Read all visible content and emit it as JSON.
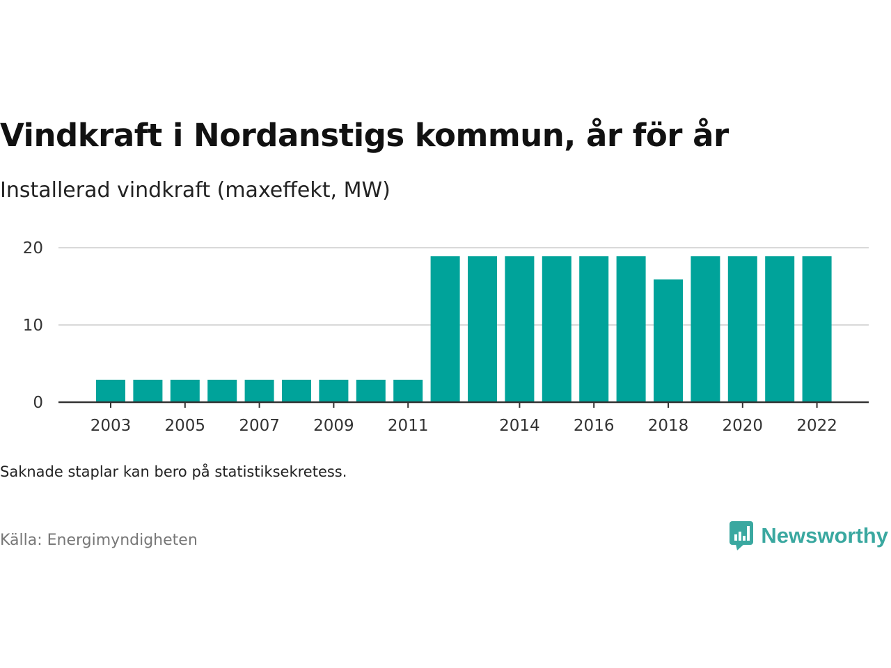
{
  "title": "Vindkraft i Nordanstigs kommun, år för år",
  "subtitle": "Installerad vindkraft (maxeffekt, MW)",
  "note": "Saknade staplar kan bero på statistiksekretess.",
  "source": "Källa: Energimyndigheten",
  "logo_text": "Newsworthy",
  "colors": {
    "bar": "#00a39a",
    "grid": "#d9d9d9",
    "axis": "#333333",
    "logo": "#3aa8a0"
  },
  "chart_data": {
    "type": "bar",
    "categories": [
      "2003",
      "2004",
      "2005",
      "2006",
      "2007",
      "2008",
      "2009",
      "2010",
      "2011",
      "2012",
      "2013",
      "2014",
      "2015",
      "2016",
      "2017",
      "2018",
      "2019",
      "2020",
      "2021",
      "2022"
    ],
    "values": [
      2.9,
      2.9,
      2.9,
      2.9,
      2.9,
      2.9,
      2.9,
      2.9,
      2.9,
      18.9,
      18.9,
      18.9,
      18.9,
      18.9,
      18.9,
      15.9,
      18.9,
      18.9,
      18.9,
      18.9
    ],
    "x_tick_labels": [
      "2003",
      "2005",
      "2007",
      "2009",
      "2011",
      "2014",
      "2016",
      "2018",
      "2020",
      "2022"
    ],
    "y_ticks": [
      0,
      10,
      20
    ],
    "ylim": [
      0,
      20
    ],
    "grid": true,
    "legend": "none"
  }
}
